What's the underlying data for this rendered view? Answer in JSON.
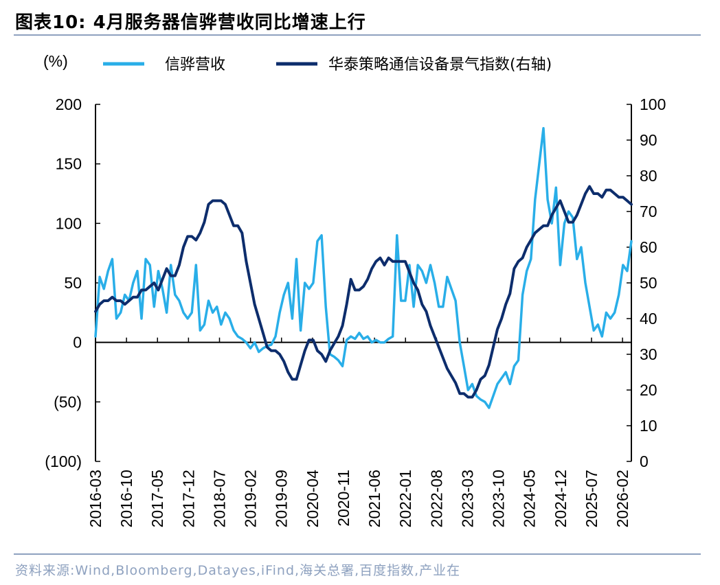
{
  "header": {
    "title": "图表10:  4月服务器信骅营收同比增速上行"
  },
  "footer": {
    "source": "资料来源:Wind,Bloomberg,Datayes,iFind,海关总署,百度指数,产业在"
  },
  "chart_data": {
    "type": "line",
    "left_axis_unit": "(%)",
    "left_axis": {
      "min": -100,
      "max": 200,
      "ticks": [
        200,
        150,
        100,
        50,
        0,
        -50,
        -100
      ],
      "tick_labels": [
        "200",
        "150",
        "100",
        "50",
        "0",
        "(50)",
        "(100)"
      ]
    },
    "right_axis": {
      "min": 0,
      "max": 100,
      "ticks": [
        100,
        90,
        80,
        70,
        60,
        50,
        40,
        30,
        20,
        10,
        0
      ],
      "tick_labels": [
        "100",
        "90",
        "80",
        "70",
        "60",
        "50",
        "40",
        "30",
        "20",
        "10",
        "0"
      ]
    },
    "x_tick_labels": [
      "2016-03",
      "2016-10",
      "2017-05",
      "2017-12",
      "2018-07",
      "2019-02",
      "2019-09",
      "2020-04",
      "2020-11",
      "2021-06",
      "2022-01",
      "2022-08",
      "2023-03",
      "2023-10",
      "2024-05",
      "2024-12",
      "2025-07",
      "2026-02"
    ],
    "x_start": "2016-03",
    "x_end": "2026-04",
    "grid": false,
    "legend_position": "top",
    "colors": {
      "series1": "#29aee8",
      "series2": "#0d2d6c"
    },
    "series": [
      {
        "name": "信骅营收",
        "axis": "left",
        "values": [
          5,
          55,
          45,
          60,
          70,
          20,
          25,
          40,
          35,
          50,
          60,
          20,
          70,
          65,
          30,
          60,
          45,
          25,
          65,
          40,
          35,
          25,
          20,
          25,
          65,
          10,
          15,
          35,
          25,
          30,
          15,
          25,
          20,
          10,
          5,
          3,
          0,
          -5,
          0,
          -8,
          -5,
          -3,
          -2,
          5,
          25,
          40,
          50,
          20,
          70,
          10,
          50,
          45,
          50,
          85,
          90,
          30,
          -10,
          -12,
          -15,
          -20,
          2,
          5,
          3,
          8,
          3,
          5,
          0,
          2,
          0,
          0,
          3,
          5,
          90,
          35,
          35,
          65,
          30,
          65,
          60,
          50,
          65,
          50,
          30,
          30,
          55,
          45,
          35,
          0,
          -20,
          -40,
          -35,
          -45,
          -48,
          -50,
          -55,
          -45,
          -35,
          -30,
          -25,
          -35,
          -20,
          -15,
          40,
          60,
          70,
          120,
          150,
          180,
          120,
          100,
          130,
          65,
          100,
          110,
          105,
          70,
          80,
          50,
          30,
          10,
          15,
          5,
          25,
          20,
          25,
          40,
          65,
          60,
          85
        ]
      },
      {
        "name": "华泰策略通信设备景气指数(右轴)",
        "axis": "right",
        "values": [
          42,
          44,
          45,
          45,
          46,
          45,
          45,
          44,
          45,
          46,
          46,
          48,
          48,
          49,
          50,
          48,
          51,
          54,
          52,
          52,
          55,
          60,
          63,
          63,
          62,
          64,
          67,
          72,
          73,
          73,
          73,
          72,
          69,
          66,
          66,
          64,
          56,
          50,
          44,
          40,
          36,
          32,
          31,
          31,
          30,
          28,
          25,
          23,
          23,
          27,
          31,
          34,
          34,
          31,
          30,
          28,
          31,
          33,
          35,
          38,
          44,
          51,
          48,
          48,
          49,
          51,
          54,
          56,
          57,
          55,
          57,
          56,
          56,
          56,
          56,
          53,
          50,
          48,
          44,
          42,
          38,
          35,
          32,
          29,
          26,
          24,
          22,
          19,
          19,
          18,
          18,
          20,
          23,
          24,
          27,
          32,
          37,
          40,
          44,
          47,
          54,
          56,
          57,
          60,
          62,
          64,
          65,
          66,
          66,
          69,
          71,
          73,
          70,
          67,
          67,
          69,
          72,
          75,
          77,
          75,
          75,
          74,
          76,
          76,
          75,
          74,
          74,
          73,
          72
        ]
      }
    ]
  }
}
